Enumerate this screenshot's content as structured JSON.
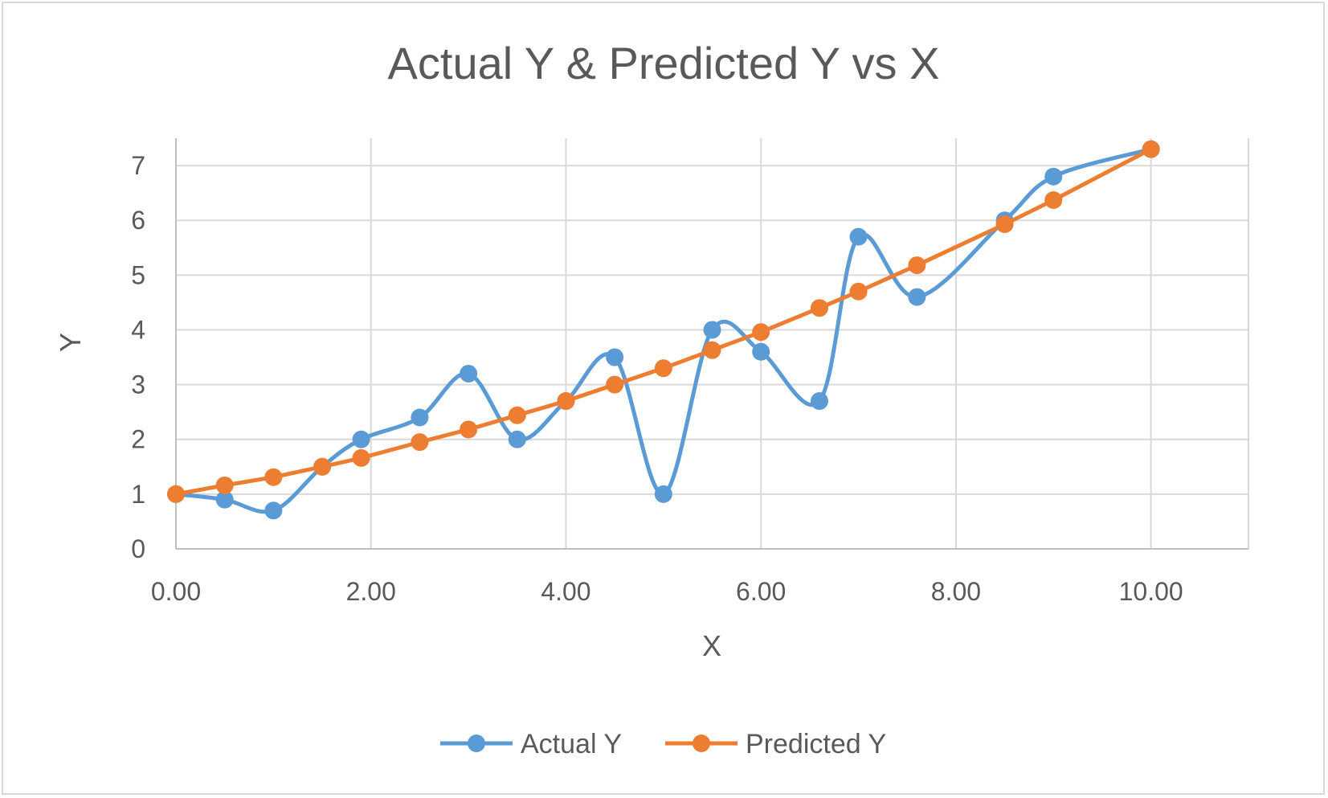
{
  "chart_data": {
    "type": "scatter",
    "title": "Actual Y & Predicted Y vs X",
    "xlabel": "X",
    "ylabel": "Y",
    "xlim": [
      0,
      11
    ],
    "ylim": [
      0,
      7.5
    ],
    "x_ticks": [
      0,
      2,
      4,
      6,
      8,
      10
    ],
    "x_tick_labels": [
      "0.00",
      "2.00",
      "4.00",
      "6.00",
      "8.00",
      "10.00"
    ],
    "y_ticks": [
      0,
      1,
      2,
      3,
      4,
      5,
      6,
      7
    ],
    "y_tick_labels": [
      "0",
      "1",
      "2",
      "3",
      "4",
      "5",
      "6",
      "7"
    ],
    "grid": true,
    "legend_position": "bottom",
    "series": [
      {
        "name": "Actual Y",
        "color": "#5b9bd5",
        "smooth": true,
        "x": [
          0,
          0.5,
          1,
          1.5,
          1.9,
          2.5,
          3,
          3.5,
          4,
          4.5,
          5,
          5.5,
          6,
          6.6,
          7,
          7.6,
          8.5,
          9,
          10
        ],
        "y": [
          1,
          0.9,
          0.7,
          1.5,
          2,
          2.4,
          3.2,
          2,
          2.7,
          3.5,
          1,
          4,
          3.6,
          2.7,
          5.7,
          4.6,
          6,
          6.8,
          7.3
        ]
      },
      {
        "name": "Predicted Y",
        "color": "#ed7d31",
        "smooth": false,
        "x": [
          0,
          0.5,
          1,
          1.5,
          1.9,
          2.5,
          3,
          3.5,
          4,
          4.5,
          5,
          5.5,
          6,
          6.6,
          7,
          7.6,
          8.5,
          9,
          10
        ],
        "y": [
          1,
          1.16,
          1.31,
          1.5,
          1.66,
          1.95,
          2.18,
          2.44,
          2.7,
          3,
          3.3,
          3.63,
          3.96,
          4.4,
          4.7,
          5.18,
          5.93,
          6.37,
          7.3
        ]
      }
    ]
  }
}
